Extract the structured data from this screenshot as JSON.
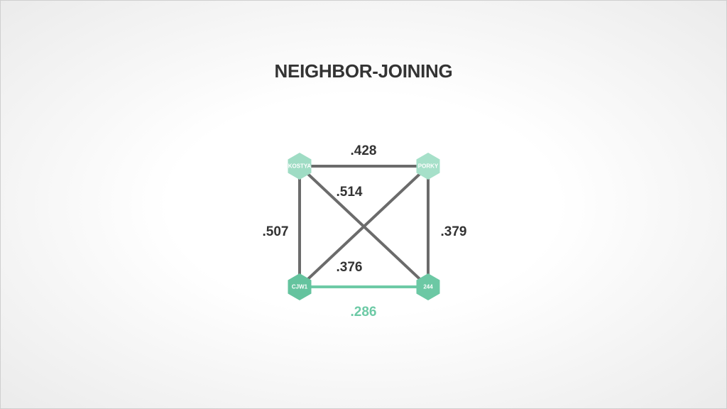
{
  "title": "NEIGHBOR-JOINING",
  "colors": {
    "edge": "#6b6b6b",
    "highlight_edge": "#6dcaa6",
    "label": "#333333",
    "highlight_label": "#6dcaa6",
    "node_light": "#9fdcc4",
    "node_dark": "#64c39e"
  },
  "nodes": [
    {
      "id": "kostya",
      "label": "KOSTYA",
      "color": "#9fdcc4"
    },
    {
      "id": "porky",
      "label": "PORKY",
      "color": "#a6e0c9"
    },
    {
      "id": "cjw1",
      "label": "CJW1",
      "color": "#64c39e"
    },
    {
      "id": "n244",
      "label": "244",
      "color": "#6cc8a4"
    }
  ],
  "edges": [
    {
      "from": "kostya",
      "to": "porky",
      "label": ".428",
      "highlight": false
    },
    {
      "from": "kostya",
      "to": "n244",
      "label": ".514",
      "highlight": false
    },
    {
      "from": "kostya",
      "to": "cjw1",
      "label": ".507",
      "highlight": false
    },
    {
      "from": "porky",
      "to": "n244",
      "label": ".379",
      "highlight": false
    },
    {
      "from": "porky",
      "to": "cjw1",
      "label": ".376",
      "highlight": false
    },
    {
      "from": "cjw1",
      "to": "n244",
      "label": ".286",
      "highlight": true
    }
  ]
}
